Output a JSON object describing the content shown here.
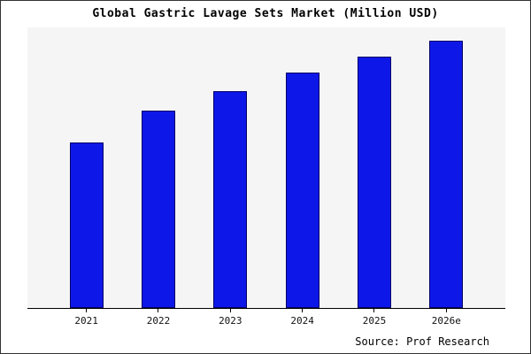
{
  "title": "Global Gastric Lavage Sets Market (Million USD)",
  "source": "Source: Prof Research",
  "colors": {
    "bar_fill": "#0d18e8",
    "bar_border": "#000066",
    "plot_bg": "#f5f5f5",
    "page_border": "#333333"
  },
  "chart_data": {
    "type": "bar",
    "categories": [
      "2021",
      "2022",
      "2023",
      "2024",
      "2025",
      "2026e"
    ],
    "values": [
      62,
      74,
      81,
      88,
      94,
      100
    ],
    "title": "Global Gastric Lavage Sets Market (Million USD)",
    "xlabel": "",
    "ylabel": "",
    "ylim": [
      0,
      105
    ],
    "legend": false,
    "grid": false,
    "value_note": "No y-axis scale shown; values are relative estimates with 2026e = 100"
  }
}
